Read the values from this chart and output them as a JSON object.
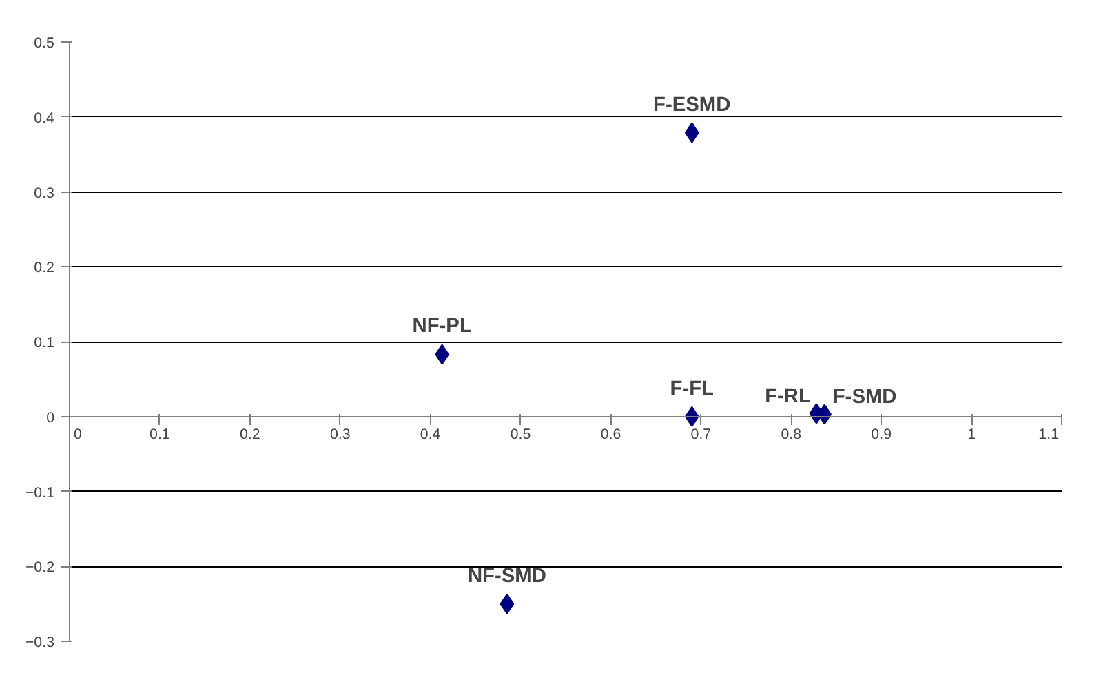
{
  "chart_data": {
    "type": "scatter",
    "x": [
      0.69,
      0.413,
      0.69,
      0.828,
      0.837,
      0.485
    ],
    "values": [
      0.379,
      0.083,
      0.0,
      0.004,
      0.003,
      -0.25
    ],
    "color": "#000080",
    "marker": "diamond",
    "xlim": [
      0,
      1.1
    ],
    "xticks": [
      0,
      0.1,
      0.2,
      0.3,
      0.4,
      0.5,
      0.6,
      0.7,
      0.8,
      0.9,
      1,
      1.1
    ],
    "ylim": [
      -0.3,
      0.5
    ],
    "yticks": [
      -0.3,
      -0.2,
      -0.1,
      0,
      0.1,
      0.2,
      0.3,
      0.4,
      0.5
    ],
    "grid": "y",
    "annotations": [
      {
        "text": "F-ESMD",
        "x": 0.69,
        "y": 0.379
      },
      {
        "text": "NF-PL",
        "x": 0.413,
        "y": 0.083
      },
      {
        "text": "F-FL",
        "x": 0.69,
        "y": 0.0
      },
      {
        "text": "F-RL",
        "x": 0.828,
        "y": 0.004
      },
      {
        "text": "F-SMD",
        "x": 0.837,
        "y": 0.003
      },
      {
        "text": "NF-SMD",
        "x": 0.485,
        "y": -0.25
      }
    ]
  }
}
